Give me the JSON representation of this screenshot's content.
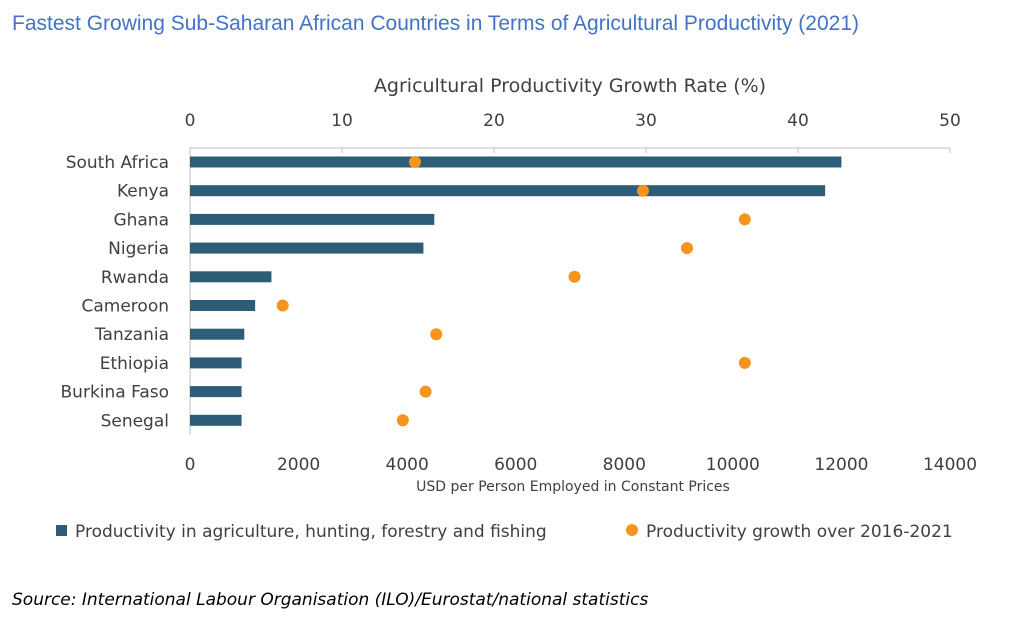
{
  "title": "Fastest Growing Sub-Saharan African Countries in Terms of Agricultural Productivity (2021)",
  "source": "Source: International Labour Organisation (ILO)/Eurostat/national statistics",
  "colors": {
    "bar": "#2E5D77",
    "dot": "#F7941D",
    "title": "#4472C4"
  },
  "chart_data": {
    "type": "bar",
    "orientation": "horizontal",
    "categories": [
      "South Africa",
      "Kenya",
      "Ghana",
      "Nigeria",
      "Rwanda",
      "Cameroon",
      "Tanzania",
      "Ethiopia",
      "Burkina Faso",
      "Senegal"
    ],
    "series": [
      {
        "name": "Productivity in agriculture, hunting, forestry and fishing",
        "type": "bar",
        "axis": "bottom",
        "values": [
          12000,
          11700,
          4500,
          4300,
          1500,
          1200,
          1000,
          950,
          950,
          950
        ]
      },
      {
        "name": "Productivity growth over 2016-2021",
        "type": "scatter",
        "axis": "top",
        "values": [
          14.8,
          29.8,
          36.5,
          32.7,
          25.3,
          6.1,
          16.2,
          36.5,
          15.5,
          14.0
        ]
      }
    ],
    "xlabel_bottom": "USD per Person Employed in Constant Prices",
    "xlabel_top": "Agricultural Productivity Growth Rate (%)",
    "xlim_bottom": [
      0,
      14000
    ],
    "xticks_bottom": [
      "0",
      "2000",
      "4000",
      "6000",
      "8000",
      "10000",
      "12000",
      "14000"
    ],
    "xlim_top": [
      0,
      50
    ],
    "xticks_top": [
      "0",
      "10",
      "20",
      "30",
      "40",
      "50"
    ],
    "grid": false,
    "legend_position": "bottom"
  }
}
